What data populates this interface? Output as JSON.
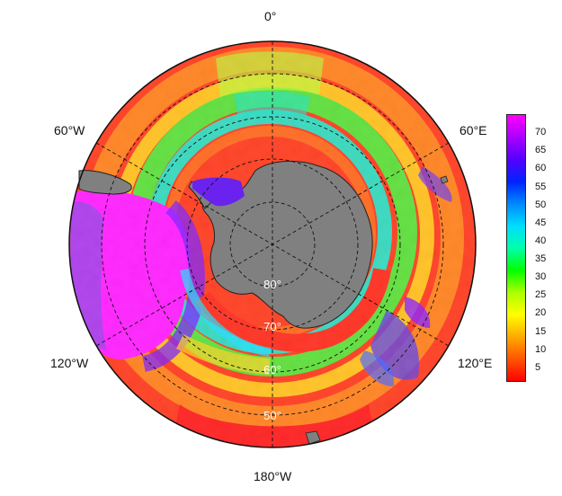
{
  "map": {
    "projection": "south-polar-stereographic",
    "lon_labels": {
      "top": "0°",
      "upper_left": "60°W",
      "upper_right": "60°E",
      "lower_left": "120°W",
      "lower_right": "120°E",
      "bottom": "180°W"
    },
    "lat_circles": [
      {
        "label": "80°",
        "lat": 80
      },
      {
        "label": "70°",
        "lat": 70
      },
      {
        "label": "60°",
        "lat": 60
      },
      {
        "label": "50°",
        "lat": 50
      }
    ],
    "land_color": "#808080",
    "grid_style": "dashed"
  },
  "colorbar": {
    "ticks": [
      "70",
      "65",
      "60",
      "55",
      "50",
      "45",
      "40",
      "35",
      "30",
      "25",
      "20",
      "15",
      "10",
      "5"
    ],
    "range": [
      1,
      75
    ],
    "colors": [
      "#ff0000",
      "#ff5500",
      "#ffaa00",
      "#ffff00",
      "#aaff00",
      "#00ff00",
      "#00ffaa",
      "#00ddff",
      "#0088ff",
      "#0022ff",
      "#5500ff",
      "#aa00ff",
      "#ff00ff"
    ]
  }
}
